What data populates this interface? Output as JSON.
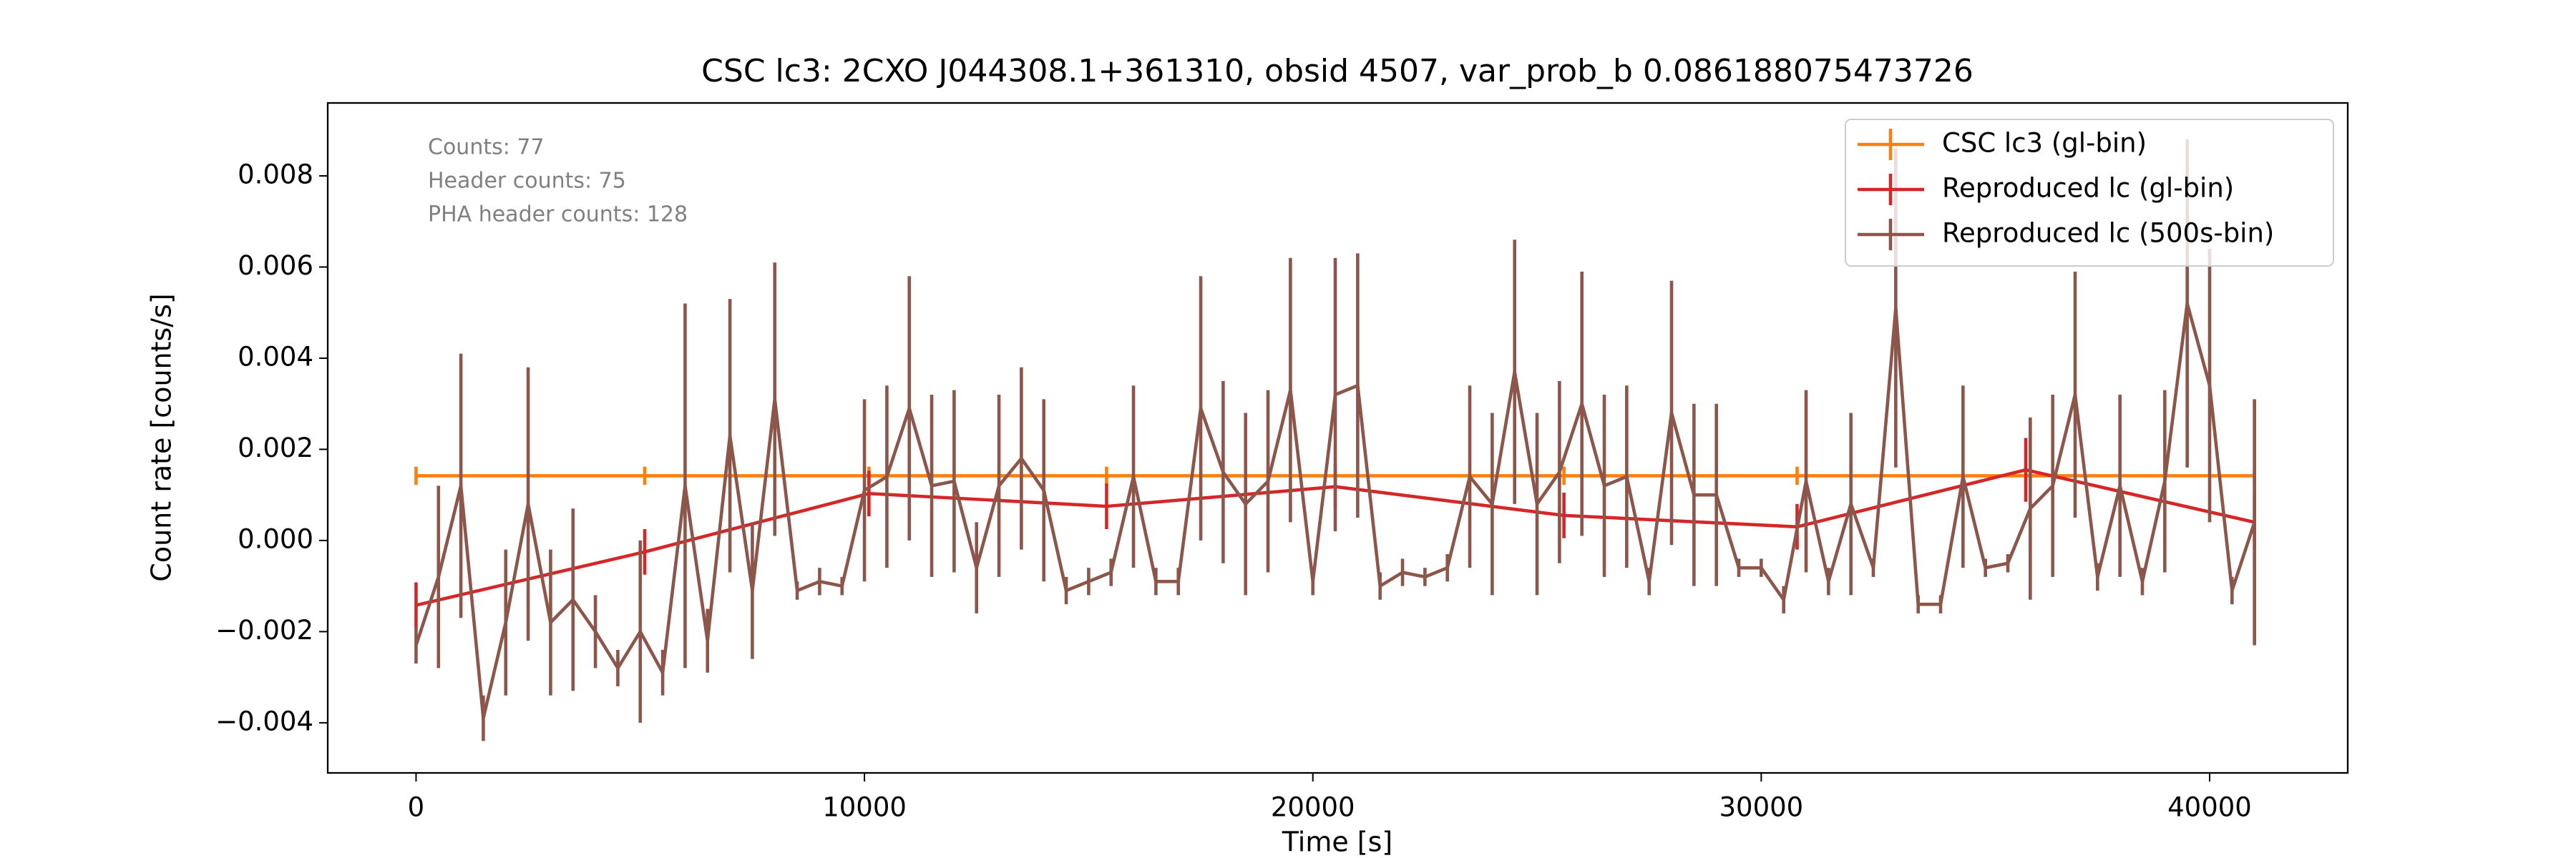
{
  "chart_data": {
    "type": "errorbar",
    "title": "CSC lc3: 2CXO J044308.1+361310, obsid 4507, var_prob_b 0.086188075473726",
    "xlabel": "Time [s]",
    "ylabel": "Count rate [counts/s]",
    "annotations": [
      "Counts: 77",
      "Header counts: 75",
      "PHA header counts: 128"
    ],
    "xlim": [
      -1970,
      43080
    ],
    "ylim": [
      -0.0051,
      0.0096
    ],
    "xticks": [
      0,
      10000,
      20000,
      30000,
      40000
    ],
    "yticks": [
      {
        "value": -0.004,
        "label": "−0.004"
      },
      {
        "value": -0.002,
        "label": "−0.002"
      },
      {
        "value": 0,
        "label": "0.000"
      },
      {
        "value": 0.002,
        "label": "0.002"
      },
      {
        "value": 0.004,
        "label": "0.004"
      },
      {
        "value": 0.006,
        "label": "0.006"
      },
      {
        "value": 0.008,
        "label": "0.008"
      }
    ],
    "legend": "upper right",
    "series": [
      {
        "name": "CSC lc3 (gl-bin)",
        "color": "#ff7f0e",
        "x": [
          0,
          5100,
          10100,
          15400,
          25600,
          30800,
          35900,
          41000
        ],
        "values": [
          0.00142,
          0.00142,
          0.00142,
          0.00142,
          0.00142,
          0.00142,
          0.00142,
          0.00142
        ],
        "yerr": [
          0.0002,
          0.0002,
          0.0002,
          0.0002,
          0.0002,
          0.0002,
          0.0002,
          0.0002
        ]
      },
      {
        "name": "Reproduced lc (gl-bin)",
        "color": "#d62728",
        "x": [
          0,
          5100,
          10100,
          15400,
          20500,
          25600,
          30800,
          35900,
          41000
        ],
        "values": [
          -0.00142,
          -0.00025,
          0.00103,
          0.00075,
          0.00118,
          0.00055,
          0.0003,
          0.00155,
          0.0004
        ],
        "yerr": [
          0.0005,
          0.0005,
          0.0005,
          0.0005,
          0.0005,
          0.0005,
          0.0005,
          0.0007,
          0.0006
        ]
      },
      {
        "name": "Reproduced lc (500s-bin)",
        "color": "#8c564b",
        "x": [
          0,
          500,
          1000,
          1500,
          2000,
          2500,
          3000,
          3500,
          4000,
          4500,
          5000,
          5500,
          6000,
          6500,
          7000,
          7500,
          8000,
          8500,
          9000,
          9500,
          10000,
          10500,
          11000,
          11500,
          12000,
          12500,
          13000,
          13500,
          14000,
          14500,
          15000,
          15500,
          16000,
          16500,
          17000,
          17500,
          18000,
          18500,
          19000,
          19500,
          20000,
          20500,
          21000,
          21500,
          22000,
          22500,
          23000,
          23500,
          24000,
          24500,
          25000,
          25500,
          26000,
          26500,
          27000,
          27500,
          28000,
          28500,
          29000,
          29500,
          30000,
          30500,
          31000,
          31500,
          32000,
          32500,
          33000,
          33500,
          34000,
          34500,
          35000,
          35500,
          36000,
          36500,
          37000,
          37500,
          38000,
          38500,
          39000,
          39500,
          40000,
          40500,
          41000
        ],
        "values": [
          -0.0023,
          -0.0008,
          0.0012,
          -0.0039,
          -0.0018,
          0.0008,
          -0.0018,
          -0.0013,
          -0.002,
          -0.0028,
          -0.002,
          -0.0029,
          0.0012,
          -0.0022,
          0.0023,
          -0.0011,
          0.0031,
          -0.0011,
          -0.0009,
          -0.001,
          0.0011,
          0.0014,
          0.0029,
          0.0012,
          0.0013,
          -0.0006,
          0.0012,
          0.0018,
          0.0011,
          -0.0011,
          -0.0009,
          -0.0007,
          0.0014,
          -0.0009,
          -0.0009,
          0.0029,
          0.0015,
          0.0008,
          0.0013,
          0.0033,
          -0.0009,
          0.0032,
          0.0034,
          -0.001,
          -0.0007,
          -0.0008,
          -0.0006,
          0.0014,
          0.0008,
          0.0037,
          0.0008,
          0.0015,
          0.003,
          0.0012,
          0.0014,
          -0.0009,
          0.0028,
          0.001,
          0.001,
          -0.0006,
          -0.0006,
          -0.0013,
          0.0013,
          -0.0009,
          0.0008,
          -0.0006,
          0.0051,
          -0.0014,
          -0.0014,
          0.0014,
          -0.0006,
          -0.0005,
          0.0007,
          0.0012,
          0.0032,
          -0.0008,
          0.0012,
          -0.0009,
          0.0013,
          0.0052,
          0.0034,
          -0.0011,
          0.0004
        ],
        "yerr": [
          0.0004,
          0.002,
          0.0029,
          0.0005,
          0.0016,
          0.003,
          0.0016,
          0.002,
          0.0008,
          0.0004,
          0.002,
          0.0005,
          0.004,
          0.0007,
          0.003,
          0.0015,
          0.003,
          0.0002,
          0.0003,
          0.0002,
          0.002,
          0.002,
          0.0029,
          0.002,
          0.002,
          0.001,
          0.002,
          0.002,
          0.002,
          0.0003,
          0.0003,
          0.0003,
          0.002,
          0.0003,
          0.0003,
          0.0029,
          0.002,
          0.002,
          0.002,
          0.0029,
          0.0003,
          0.003,
          0.0029,
          0.0003,
          0.0003,
          0.0002,
          0.0003,
          0.002,
          0.002,
          0.0029,
          0.002,
          0.002,
          0.0029,
          0.002,
          0.002,
          0.0003,
          0.0029,
          0.002,
          0.002,
          0.0002,
          0.0002,
          0.0003,
          0.002,
          0.0003,
          0.002,
          0.0002,
          0.0035,
          0.0002,
          0.0002,
          0.002,
          0.0002,
          0.0002,
          0.002,
          0.002,
          0.0027,
          0.0003,
          0.002,
          0.0003,
          0.002,
          0.0036,
          0.003,
          0.0003,
          0.0027
        ]
      }
    ]
  }
}
